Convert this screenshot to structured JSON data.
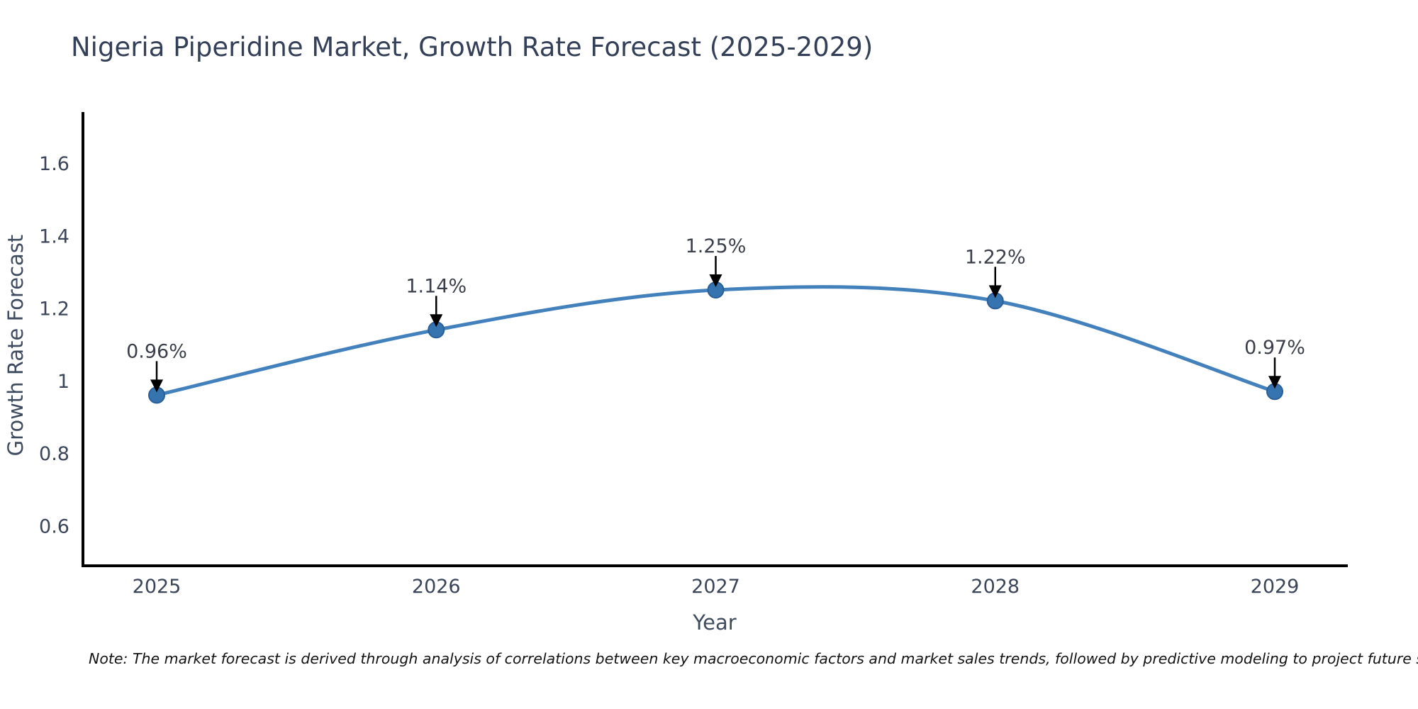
{
  "page": {
    "note": "Note: The market forecast is derived through analysis of correlations between key macroeconomic factors and market sales trends, followed by predictive modeling to project future sales"
  },
  "chart_data": {
    "type": "line",
    "title": "Nigeria Piperidine Market, Growth Rate Forecast (2025-2029)",
    "xlabel": "Year",
    "ylabel": "Growth Rate Forecast",
    "categories": [
      "2025",
      "2026",
      "2027",
      "2028",
      "2029"
    ],
    "series": [
      {
        "name": "Growth Rate Forecast",
        "values": [
          0.96,
          1.14,
          1.25,
          1.22,
          0.97
        ],
        "labels": [
          "0.96%",
          "1.14%",
          "1.25%",
          "1.22%",
          "0.97%"
        ]
      }
    ],
    "yticks": [
      0.6,
      0.8,
      1.0,
      1.2,
      1.4,
      1.6
    ],
    "ytick_labels": [
      "0.6",
      "0.8",
      "1",
      "1.2",
      "1.4",
      "1.6"
    ],
    "ylim": [
      0.49,
      1.74
    ],
    "xlim": [
      2024.74,
      2029.26
    ],
    "grid": false,
    "legend": false,
    "line_shape": "spline",
    "annotation_style": "value-label-with-down-arrow-to-point",
    "colors": {
      "line": "#4381bc",
      "marker_fill": "#3674b0",
      "marker_edge": "#2b5f98",
      "arrow": "#000000",
      "axis": "#000000",
      "tick_text": "#3b4559",
      "title_text": "#343f58",
      "note_text": "#141414"
    }
  }
}
